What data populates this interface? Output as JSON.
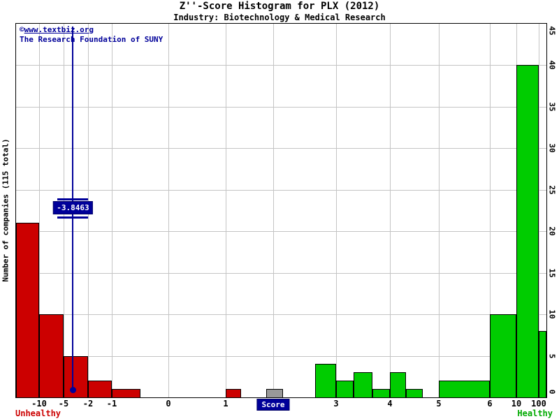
{
  "header": {
    "title": "Z''-Score Histogram for PLX (2012)",
    "subtitle": "Industry: Biotechnology & Medical Research"
  },
  "watermark": {
    "copyright_symbol": "©",
    "site": "www.textbiz.org",
    "organization": "The Research Foundation of SUNY"
  },
  "axes": {
    "y_label": "Number of companies (115 total)",
    "y_ticks": [
      0,
      5,
      10,
      15,
      20,
      25,
      30,
      35,
      40,
      45
    ],
    "x_label": "Score",
    "x_ticks": [
      -10,
      -5,
      -2,
      -1,
      0,
      1,
      2,
      3,
      4,
      5,
      6,
      10,
      100
    ]
  },
  "zone_labels": {
    "left": "Unhealthy",
    "right": "Healthy"
  },
  "marker": {
    "value": -3.8463,
    "label": "-3.8463"
  },
  "colors": {
    "distress": "#cc0000",
    "grey_zone": "#999999",
    "safe": "#00cc00",
    "marker": "#000099",
    "grid": "#c4c4c4",
    "unhealthy_text": "#cc0000",
    "healthy_text": "#00aa00",
    "watermark_text": "#000099"
  },
  "chart_data": {
    "type": "bar",
    "title": "Z''-Score Histogram for PLX (2012)",
    "subtitle": "Industry: Biotechnology & Medical Research",
    "xlabel": "Score",
    "ylabel": "Number of companies (115 total)",
    "total_companies": 115,
    "ylim": [
      0,
      45
    ],
    "grid": true,
    "x_scale_breakpoints": [
      [
        -13,
        0
      ],
      [
        -10,
        33
      ],
      [
        -5,
        68
      ],
      [
        -2,
        103
      ],
      [
        -1,
        137
      ],
      [
        0,
        218
      ],
      [
        1,
        300
      ],
      [
        2,
        368
      ],
      [
        3,
        458
      ],
      [
        4,
        535
      ],
      [
        5,
        605
      ],
      [
        6,
        678
      ],
      [
        10,
        716
      ],
      [
        100,
        748
      ],
      [
        1000,
        759
      ]
    ],
    "marker_value": -3.8463,
    "bars": [
      {
        "from": -13,
        "to": -10,
        "count": 21,
        "zone": "distress"
      },
      {
        "from": -10,
        "to": -5,
        "count": 10,
        "zone": "distress"
      },
      {
        "from": -5,
        "to": -2,
        "count": 5,
        "zone": "distress"
      },
      {
        "from": -2,
        "to": -1,
        "count": 2,
        "zone": "distress"
      },
      {
        "from": -1,
        "to": -0.5,
        "count": 1,
        "zone": "distress"
      },
      {
        "from": 1,
        "to": 1.33,
        "count": 1,
        "zone": "distress"
      },
      {
        "from": 1.85,
        "to": 2.15,
        "count": 1,
        "zone": "grey_zone"
      },
      {
        "from": 2.67,
        "to": 3,
        "count": 4,
        "zone": "safe"
      },
      {
        "from": 3,
        "to": 3.33,
        "count": 2,
        "zone": "safe"
      },
      {
        "from": 3.33,
        "to": 3.67,
        "count": 3,
        "zone": "safe"
      },
      {
        "from": 3.67,
        "to": 4,
        "count": 1,
        "zone": "safe"
      },
      {
        "from": 4,
        "to": 4.33,
        "count": 3,
        "zone": "safe"
      },
      {
        "from": 4.33,
        "to": 4.67,
        "count": 1,
        "zone": "safe"
      },
      {
        "from": 5,
        "to": 6,
        "count": 2,
        "zone": "safe"
      },
      {
        "from": 6,
        "to": 10,
        "count": 10,
        "zone": "safe"
      },
      {
        "from": 10,
        "to": 100,
        "count": 40,
        "zone": "safe"
      },
      {
        "from": 100,
        "to": 1000,
        "count": 8,
        "zone": "safe"
      }
    ]
  }
}
